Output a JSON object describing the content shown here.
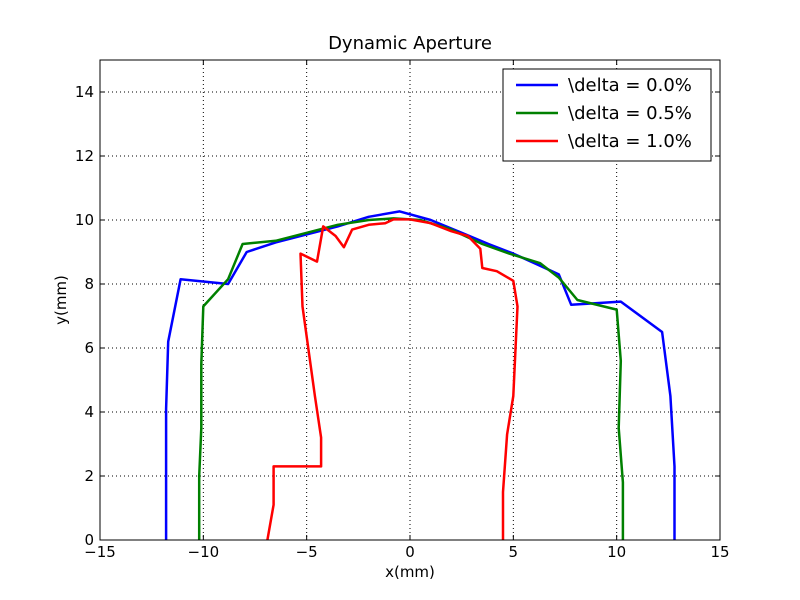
{
  "chart_data": {
    "type": "line",
    "title": "Dynamic Aperture",
    "xlabel": "x(mm)",
    "ylabel": "y(mm)",
    "xlim": [
      -15,
      15
    ],
    "ylim": [
      0,
      15
    ],
    "xticks": [
      "−15",
      "−10",
      "−5",
      "0",
      "5",
      "10",
      "15"
    ],
    "yticks": [
      "0",
      "2",
      "4",
      "6",
      "8",
      "10",
      "12",
      "14"
    ],
    "grid": true,
    "legend_position": "top-right",
    "series": [
      {
        "name": "\\delta = 0.0%",
        "color": "#0000ff",
        "points": [
          [
            -11.8,
            0
          ],
          [
            -11.8,
            2.2
          ],
          [
            -11.8,
            4.1
          ],
          [
            -11.7,
            6.2
          ],
          [
            -11.1,
            8.15
          ],
          [
            -8.8,
            8.0
          ],
          [
            -7.9,
            9.0
          ],
          [
            -6.5,
            9.3
          ],
          [
            -5.0,
            9.55
          ],
          [
            -3.5,
            9.8
          ],
          [
            -2.0,
            10.1
          ],
          [
            -0.5,
            10.27
          ],
          [
            1.0,
            10.0
          ],
          [
            2.5,
            9.6
          ],
          [
            3.8,
            9.25
          ],
          [
            5.0,
            8.95
          ],
          [
            6.2,
            8.6
          ],
          [
            7.2,
            8.3
          ],
          [
            7.8,
            7.35
          ],
          [
            10.2,
            7.45
          ],
          [
            12.2,
            6.5
          ],
          [
            12.6,
            4.5
          ],
          [
            12.8,
            2.3
          ],
          [
            12.8,
            0
          ]
        ]
      },
      {
        "name": "\\delta = 0.5%",
        "color": "#008000",
        "points": [
          [
            -10.2,
            0
          ],
          [
            -10.2,
            2.0
          ],
          [
            -10.1,
            3.5
          ],
          [
            -10.1,
            5.5
          ],
          [
            -10.0,
            7.3
          ],
          [
            -8.8,
            8.15
          ],
          [
            -8.1,
            9.25
          ],
          [
            -6.5,
            9.35
          ],
          [
            -5.0,
            9.6
          ],
          [
            -3.5,
            9.85
          ],
          [
            -2.0,
            10.0
          ],
          [
            -0.8,
            10.05
          ],
          [
            0.5,
            10.0
          ],
          [
            2.0,
            9.7
          ],
          [
            3.5,
            9.25
          ],
          [
            4.8,
            8.95
          ],
          [
            6.3,
            8.65
          ],
          [
            7.2,
            8.2
          ],
          [
            8.1,
            7.5
          ],
          [
            10.0,
            7.2
          ],
          [
            10.2,
            5.6
          ],
          [
            10.1,
            3.5
          ],
          [
            10.3,
            1.8
          ],
          [
            10.3,
            0
          ]
        ]
      },
      {
        "name": "\\delta = 1.0%",
        "color": "#ff0000",
        "points": [
          [
            -6.9,
            0
          ],
          [
            -6.6,
            1.1
          ],
          [
            -6.6,
            2.3
          ],
          [
            -4.3,
            2.3
          ],
          [
            -4.3,
            3.2
          ],
          [
            -4.6,
            4.5
          ],
          [
            -5.2,
            7.3
          ],
          [
            -5.3,
            8.95
          ],
          [
            -4.5,
            8.7
          ],
          [
            -4.2,
            9.8
          ],
          [
            -3.6,
            9.5
          ],
          [
            -3.2,
            9.15
          ],
          [
            -2.8,
            9.7
          ],
          [
            -2.0,
            9.85
          ],
          [
            -1.2,
            9.9
          ],
          [
            -0.8,
            10.02
          ],
          [
            0,
            10.02
          ],
          [
            1.0,
            9.9
          ],
          [
            2.0,
            9.65
          ],
          [
            2.8,
            9.5
          ],
          [
            3.4,
            9.1
          ],
          [
            3.5,
            8.5
          ],
          [
            4.2,
            8.4
          ],
          [
            5.0,
            8.1
          ],
          [
            5.2,
            7.3
          ],
          [
            5.0,
            4.5
          ],
          [
            4.7,
            3.3
          ],
          [
            4.5,
            1.5
          ],
          [
            4.5,
            0
          ]
        ]
      }
    ]
  }
}
